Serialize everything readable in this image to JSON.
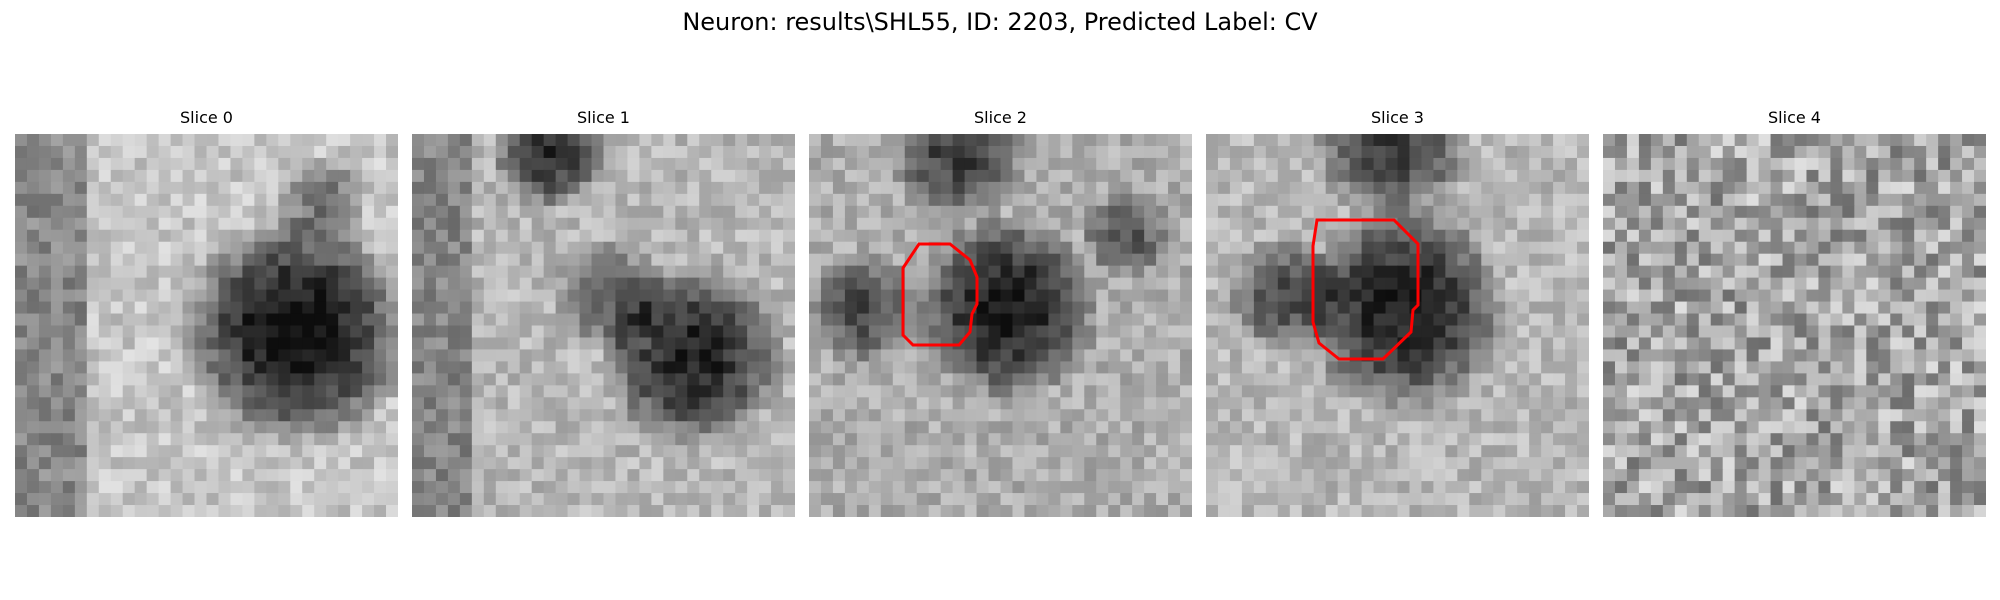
{
  "figure": {
    "title": "Neuron: results\\SHL55, ID: 2203, Predicted Label: CV",
    "contour_color": "#ff0000"
  },
  "panels": [
    {
      "title": "Slice 0",
      "has_contour": false
    },
    {
      "title": "Slice 1",
      "has_contour": false
    },
    {
      "title": "Slice 2",
      "has_contour": true
    },
    {
      "title": "Slice 3",
      "has_contour": true
    },
    {
      "title": "Slice 4",
      "has_contour": false
    }
  ]
}
